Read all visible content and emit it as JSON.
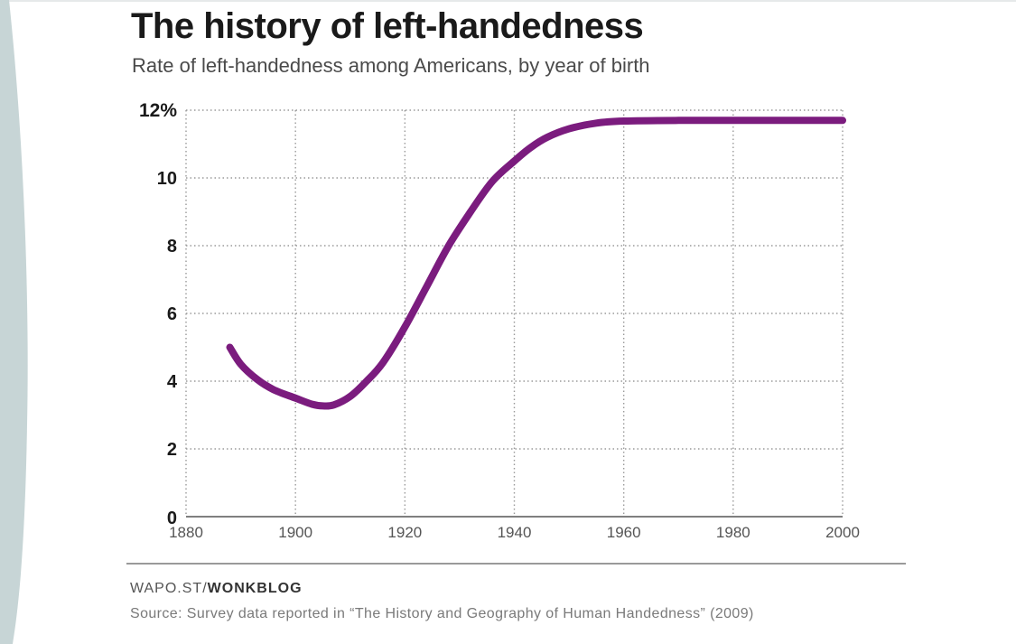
{
  "chart_data": {
    "type": "line",
    "title": "The history of left-handedness",
    "subtitle": "Rate of left-handedness among Americans, by year of birth",
    "xlabel": "",
    "ylabel": "",
    "xlim": [
      1880,
      2000
    ],
    "ylim": [
      0,
      12
    ],
    "x_ticks": [
      1880,
      1900,
      1920,
      1940,
      1960,
      1980,
      2000
    ],
    "y_ticks": [
      0,
      2,
      4,
      6,
      8,
      10,
      12
    ],
    "y_tick_labels": [
      "0",
      "2",
      "4",
      "6",
      "8",
      "10",
      "12%"
    ],
    "x_tick_labels": [
      "1880",
      "1900",
      "1920",
      "1940",
      "1960",
      "1980",
      "2000"
    ],
    "grid": true,
    "series": [
      {
        "color": "#7b1c7e",
        "x": [
          1888,
          1890,
          1893,
          1896,
          1900,
          1903,
          1905,
          1907,
          1910,
          1913,
          1916,
          1920,
          1924,
          1928,
          1932,
          1936,
          1940,
          1943,
          1946,
          1950,
          1955,
          1960,
          1970,
          1980,
          1990,
          2000
        ],
        "y": [
          5.0,
          4.5,
          4.05,
          3.75,
          3.5,
          3.32,
          3.27,
          3.3,
          3.55,
          4.0,
          4.55,
          5.6,
          6.8,
          8.0,
          9.0,
          9.9,
          10.5,
          10.9,
          11.2,
          11.45,
          11.62,
          11.68,
          11.7,
          11.7,
          11.7,
          11.7
        ]
      }
    ]
  },
  "footer": {
    "credit_prefix": "WAPO.ST/",
    "credit_bold": "WONKBLOG",
    "source": "Source: Survey data reported in “The History and Geography of Human Handedness” (2009)"
  },
  "colors": {
    "line": "#7b1c7e",
    "side_band": "#c7d5d6",
    "grid": "#9a9a9a"
  }
}
